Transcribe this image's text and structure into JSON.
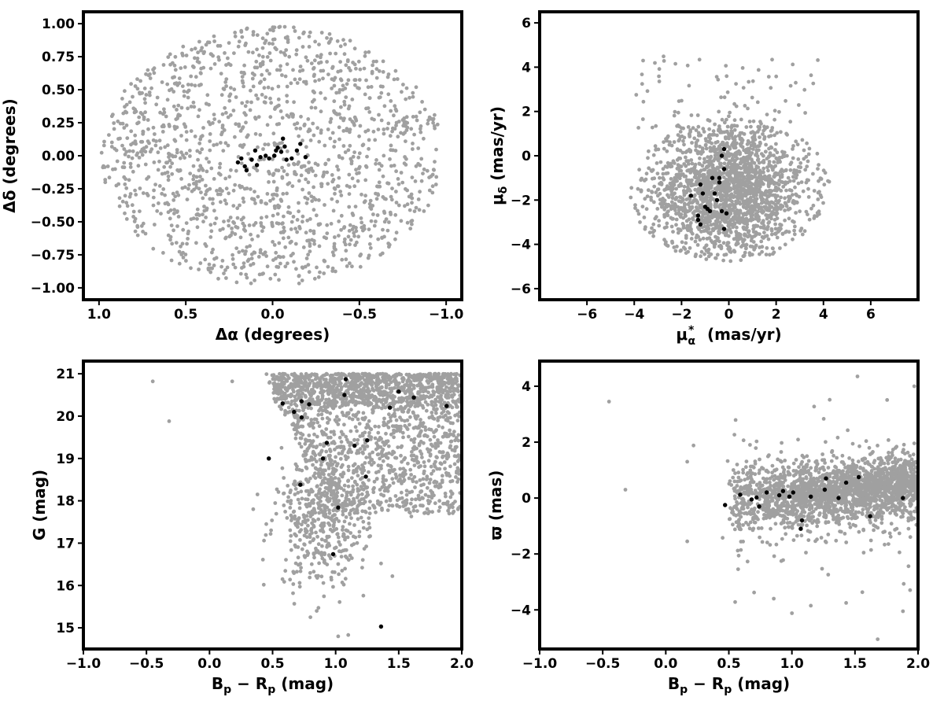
{
  "chart_data": [
    {
      "id": "sky",
      "type": "scatter",
      "xlabel": "Δα (degrees)",
      "ylabel": "Δδ (degrees)",
      "xlim": [
        1.09,
        -1.09
      ],
      "ylim": [
        -1.09,
        1.09
      ],
      "xticks": [
        "1.0",
        "0.5",
        "0.0",
        "−0.5",
        "−1.0"
      ],
      "xtick_values": [
        1.0,
        0.5,
        0.0,
        -0.5,
        -1.0
      ],
      "yticks": [
        "−1.00",
        "−0.75",
        "−0.50",
        "−0.25",
        "0.00",
        "0.25",
        "0.50",
        "0.75",
        "1.00"
      ],
      "ytick_values": [
        -1.0,
        -0.75,
        -0.5,
        -0.25,
        0.0,
        0.25,
        0.5,
        0.75,
        1.0
      ],
      "series": [
        {
          "role": "field",
          "color": "#a0a0a0",
          "distribution": "uniform disk",
          "radius_deg": 1.0,
          "count_approx": 1500
        },
        {
          "role": "members",
          "color": "#000000",
          "x": [
            0.2,
            0.18,
            0.16,
            0.15,
            0.12,
            0.1,
            0.09,
            0.07,
            0.04,
            0.02,
            -0.01,
            -0.02,
            -0.03,
            -0.05,
            -0.06,
            -0.07,
            -0.08,
            -0.11,
            -0.14,
            -0.16,
            -0.19
          ],
          "y": [
            -0.05,
            -0.02,
            -0.08,
            -0.11,
            -0.03,
            0.04,
            -0.07,
            -0.01,
            0.0,
            -0.02,
            0.0,
            0.04,
            0.06,
            0.03,
            0.13,
            0.07,
            -0.03,
            -0.02,
            0.04,
            0.09,
            -0.01
          ]
        }
      ]
    },
    {
      "id": "pm",
      "type": "scatter",
      "xlabel": "μ*α (mas/yr)",
      "ylabel": "μδ (mas/yr)",
      "xlim": [
        -8,
        8
      ],
      "ylim": [
        -6.5,
        6.5
      ],
      "xticks": [
        "−6",
        "−4",
        "−2",
        "0",
        "2",
        "4",
        "6"
      ],
      "xtick_values": [
        -6,
        -4,
        -2,
        0,
        2,
        4,
        6
      ],
      "yticks": [
        "−6",
        "−4",
        "−2",
        "0",
        "2",
        "4",
        "6"
      ],
      "ytick_values": [
        -6,
        -4,
        -2,
        0,
        2,
        4,
        6
      ],
      "series": [
        {
          "role": "field",
          "color": "#a0a0a0",
          "center": [
            0.0,
            -1.5
          ],
          "radius": 4.0,
          "count_approx": 2000
        },
        {
          "role": "members",
          "color": "#000000",
          "x": [
            -1.6,
            -1.3,
            -1.2,
            -1.0,
            -0.8,
            -0.6,
            -0.4,
            -0.2,
            -0.3,
            -0.2,
            -0.4,
            -0.1,
            -1.1,
            -0.9,
            -0.7,
            -0.5,
            -0.3,
            -0.2,
            -1.3,
            -1.2
          ],
          "y": [
            -1.8,
            -2.7,
            -3.1,
            -2.3,
            -2.5,
            -1.7,
            -1.2,
            -0.6,
            0.0,
            0.3,
            -1.0,
            -2.6,
            -1.7,
            -2.4,
            -1.0,
            -2.0,
            -2.5,
            -3.3,
            -2.9,
            -1.3
          ]
        }
      ]
    },
    {
      "id": "cmd",
      "type": "scatter",
      "xlabel": "Bp − Rp (mag)",
      "ylabel": "G (mag)",
      "xlim": [
        -1.0,
        2.0
      ],
      "ylim": [
        14.5,
        21.3
      ],
      "xticks": [
        "−1.0",
        "−0.5",
        "0.0",
        "0.5",
        "1.0",
        "1.5",
        "2.0"
      ],
      "xtick_values": [
        -1.0,
        -0.5,
        0.0,
        0.5,
        1.0,
        1.5,
        2.0
      ],
      "yticks": [
        "15",
        "16",
        "17",
        "18",
        "19",
        "20",
        "21"
      ],
      "ytick_values": [
        15,
        16,
        17,
        18,
        19,
        20,
        21
      ],
      "series": [
        {
          "role": "field",
          "color": "#a0a0a0",
          "count_approx": 2000
        },
        {
          "role": "members",
          "color": "#000000",
          "x": [
            1.08,
            1.07,
            0.73,
            0.79,
            0.58,
            0.67,
            0.73,
            1.43,
            1.5,
            1.62,
            1.88,
            0.93,
            1.15,
            1.25,
            0.47,
            0.9,
            1.24,
            0.72,
            1.02,
            0.98,
            1.36
          ],
          "y": [
            20.87,
            20.5,
            20.35,
            20.28,
            20.3,
            20.1,
            19.97,
            20.2,
            20.58,
            20.44,
            20.24,
            19.37,
            19.3,
            19.43,
            19.0,
            19.0,
            18.57,
            18.38,
            17.84,
            16.74,
            15.03
          ]
        }
      ]
    },
    {
      "id": "parallax",
      "type": "scatter",
      "xlabel": "Bp − Rp (mag)",
      "ylabel": "ϖ (mas)",
      "xlim": [
        -1.0,
        2.0
      ],
      "ylim": [
        -5.4,
        4.9
      ],
      "xticks": [
        "−1.0",
        "−0.5",
        "0.0",
        "0.5",
        "1.0",
        "1.5",
        "2.0"
      ],
      "xtick_values": [
        -1.0,
        -0.5,
        0.0,
        0.5,
        1.0,
        1.5,
        2.0
      ],
      "yticks": [
        "−4",
        "−2",
        "0",
        "2",
        "4"
      ],
      "ytick_values": [
        -4,
        -2,
        0,
        2,
        4
      ],
      "series": [
        {
          "role": "field",
          "color": "#a0a0a0",
          "count_approx": 2000
        },
        {
          "role": "members",
          "color": "#000000",
          "x": [
            0.47,
            0.59,
            0.68,
            0.72,
            0.74,
            0.8,
            0.9,
            0.93,
            0.98,
            1.01,
            1.07,
            1.08,
            1.15,
            1.26,
            1.27,
            1.37,
            1.43,
            1.53,
            1.62,
            1.88
          ],
          "y": [
            -0.25,
            0.12,
            -0.05,
            0.02,
            -0.3,
            0.2,
            0.1,
            0.25,
            0.05,
            0.2,
            -1.1,
            -0.8,
            0.05,
            0.3,
            0.7,
            0.0,
            0.55,
            0.75,
            -0.65,
            0.0
          ]
        }
      ]
    }
  ]
}
